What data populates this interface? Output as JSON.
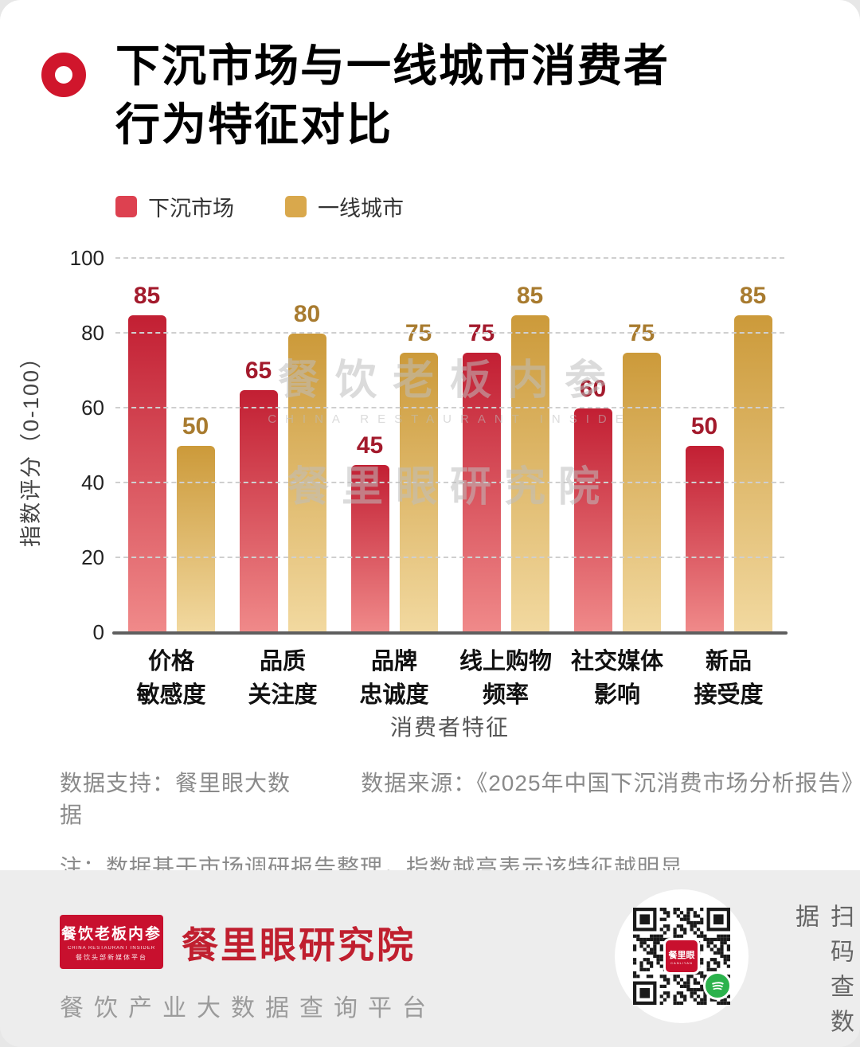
{
  "header": {
    "title_line1": "下沉市场与一线城市消费者",
    "title_line2": "行为特征对比"
  },
  "legend": [
    {
      "label": "下沉市场",
      "color": "#dd4150"
    },
    {
      "label": "一线城市",
      "color": "#d9a84c"
    }
  ],
  "chart_data": {
    "type": "bar",
    "title": "下沉市场与一线城市消费者行为特征对比",
    "xlabel": "消费者特征",
    "ylabel": "指数评分（0-100）",
    "ylim": [
      0,
      100
    ],
    "yticks": [
      0,
      20,
      40,
      60,
      80,
      100
    ],
    "grid": "dashed",
    "legend_position": "top-left",
    "categories": [
      {
        "line1": "价格",
        "line2": "敏感度"
      },
      {
        "line1": "品质",
        "line2": "关注度"
      },
      {
        "line1": "品牌",
        "line2": "忠诚度"
      },
      {
        "line1": "线上购物",
        "line2": "频率"
      },
      {
        "line1": "社交媒体",
        "line2": "影响"
      },
      {
        "line1": "新品",
        "line2": "接受度"
      }
    ],
    "series": [
      {
        "name": "下沉市场",
        "values": [
          85,
          65,
          45,
          75,
          60,
          50
        ],
        "color_top": "#c21f33",
        "color_bottom": "#f08a8a",
        "label_color": "#a31a2c"
      },
      {
        "name": "一线城市",
        "values": [
          50,
          80,
          75,
          85,
          75,
          85
        ],
        "color_top": "#cc9a3a",
        "color_bottom": "#f2d9a0",
        "label_color": "#a87b2f"
      }
    ]
  },
  "watermark": {
    "line1": "餐饮老板内参",
    "line1_sub": "CHINA RESTAURANT INSIDE",
    "line2": "餐里眼研究院"
  },
  "notes": {
    "support": "数据支持：餐里眼大数据",
    "source": "数据来源：《2025年中国下沉消费市场分析报告》",
    "note": "注：数据基于市场调研报告整理，指数越高表示该特征越明显"
  },
  "footer": {
    "logo_title": "餐饮老板内参",
    "logo_sub_en": "CHINA RESTAURANT INSIDER",
    "logo_sub_cn": "餐饮头部新媒体平台",
    "brand": "餐里眼研究院",
    "tagline": "餐饮产业大数据查询平台",
    "qr_label": "餐里眼",
    "qr_sub": "CANLIYAN",
    "side_text": "扫码查数据"
  }
}
